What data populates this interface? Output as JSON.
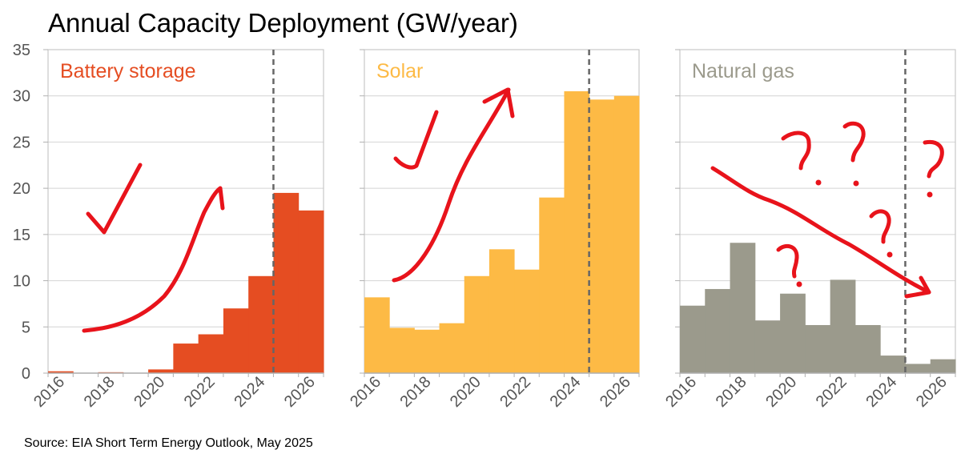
{
  "title": "Annual Capacity Deployment (GW/year)",
  "source": "Source: EIA Short Term Energy Outlook, May 2025",
  "colors": {
    "battery": "#e54d22",
    "solar": "#fdba45",
    "gas": "#9b9a8c",
    "annotation": "#e8131b",
    "forecast_line": "#666666"
  },
  "chart_data": {
    "type": "bar",
    "ylim": [
      0,
      35
    ],
    "yticks": [
      "0",
      "5",
      "10",
      "15",
      "20",
      "25",
      "30",
      "35"
    ],
    "categories": [
      2016,
      2017,
      2018,
      2019,
      2020,
      2021,
      2022,
      2023,
      2024,
      2025,
      2026
    ],
    "xtick_labels": [
      "2016",
      "2018",
      "2020",
      "2022",
      "2024",
      "2026"
    ],
    "forecast_start": 2025,
    "grid": "horizontal",
    "panels": [
      {
        "name": "Battery storage",
        "color": "#e54d22",
        "values": [
          0.2,
          0.0,
          0.1,
          0.0,
          0.4,
          3.2,
          4.2,
          7.0,
          10.5,
          19.5,
          17.6
        ]
      },
      {
        "name": "Solar",
        "color": "#fdba45",
        "values": [
          8.2,
          4.9,
          4.7,
          5.4,
          10.5,
          13.4,
          11.2,
          19.0,
          30.5,
          29.6,
          30.0
        ]
      },
      {
        "name": "Natural gas",
        "color": "#9b9a8c",
        "values": [
          7.3,
          9.1,
          14.1,
          5.7,
          8.6,
          5.2,
          10.1,
          5.2,
          1.9,
          1.0,
          1.5
        ]
      }
    ]
  }
}
